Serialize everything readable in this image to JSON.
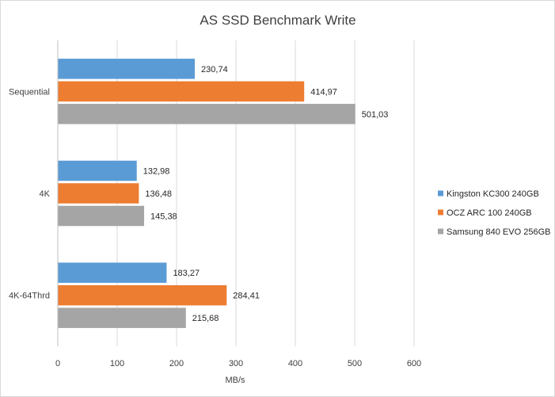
{
  "chart_data": {
    "type": "bar",
    "orientation": "horizontal",
    "title": "AS SSD Benchmark Write",
    "xlabel": "MB/s",
    "ylabel": "",
    "xlim": [
      0,
      600
    ],
    "x_ticks": [
      "0",
      "100",
      "200",
      "300",
      "400",
      "500",
      "600"
    ],
    "grid": "vertical",
    "legend_position": "right",
    "categories": [
      "Sequential",
      "4K",
      "4K-64Thrd"
    ],
    "series": [
      {
        "name": "Kingston KC300 240GB",
        "color": "#5b9bd5",
        "values": [
          230.74,
          132.98,
          183.27
        ],
        "labels": [
          "230,74",
          "132,98",
          "183,27"
        ]
      },
      {
        "name": "OCZ ARC 100 240GB",
        "color": "#ed7d31",
        "values": [
          414.97,
          136.48,
          284.41
        ],
        "labels": [
          "414,97",
          "136,48",
          "284,41"
        ]
      },
      {
        "name": "Samsung 840 EVO 256GB",
        "color": "#a5a5a5",
        "values": [
          501.03,
          145.38,
          215.68
        ],
        "labels": [
          "501,03",
          "145,38",
          "215,68"
        ]
      }
    ]
  }
}
